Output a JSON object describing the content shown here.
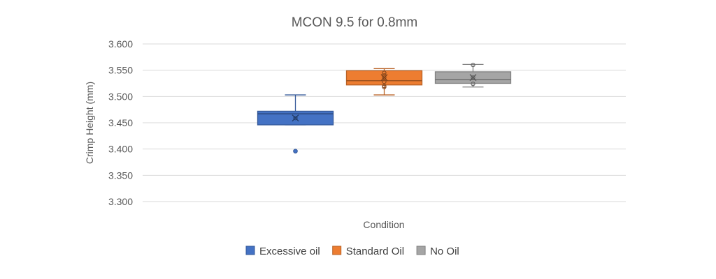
{
  "chart_data": {
    "type": "box",
    "title": "MCON 9.5 for 0.8mm",
    "xlabel": "Condition",
    "ylabel": "Crimp Height (mm)",
    "ylim": [
      3.3,
      3.6
    ],
    "yticks": [
      "3.600",
      "3.550",
      "3.500",
      "3.450",
      "3.400",
      "3.350",
      "3.300"
    ],
    "grid": true,
    "legend_position": "bottom",
    "series": [
      {
        "name": "Excessive oil",
        "color": "#4472c4",
        "min": 3.446,
        "q1": 3.446,
        "median": 3.467,
        "q3": 3.472,
        "max": 3.503,
        "mean": 3.459,
        "outliers": [
          3.396
        ],
        "points": [
          3.459,
          3.396
        ]
      },
      {
        "name": "Standard Oil",
        "color": "#ed7d31",
        "min": 3.503,
        "q1": 3.522,
        "median": 3.53,
        "q3": 3.549,
        "max": 3.553,
        "mean": 3.536,
        "outliers": [],
        "points": [
          3.545,
          3.54,
          3.536,
          3.528,
          3.52,
          3.518
        ]
      },
      {
        "name": "No Oil",
        "color": "#a5a5a5",
        "min": 3.518,
        "q1": 3.525,
        "median": 3.532,
        "q3": 3.547,
        "max": 3.561,
        "mean": 3.536,
        "outliers": [],
        "points": [
          3.56,
          3.536,
          3.524
        ]
      }
    ]
  }
}
